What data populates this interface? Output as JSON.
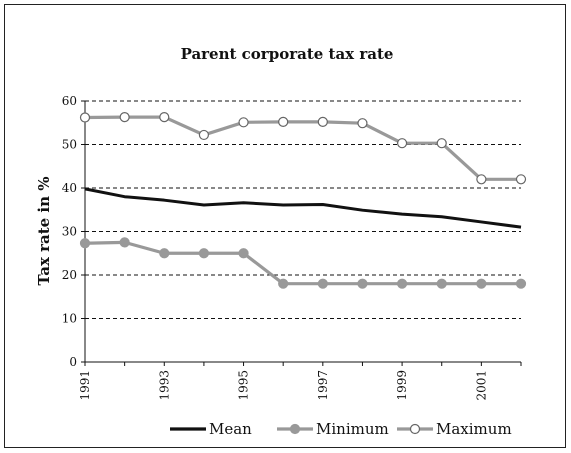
{
  "chart_data": {
    "type": "line",
    "title": "Parent corporate tax rate",
    "xlabel": "",
    "ylabel": "Tax rate in %",
    "x": [
      1991,
      1992,
      1993,
      1994,
      1995,
      1996,
      1997,
      1998,
      1999,
      2000,
      2001,
      2002
    ],
    "x_tick_labels": [
      "1991",
      "1993",
      "1995",
      "1997",
      "1999",
      "2001"
    ],
    "x_tick_values": [
      1991,
      1993,
      1995,
      1997,
      1999,
      2001
    ],
    "xlim": [
      1991,
      2002
    ],
    "ylim": [
      0,
      60
    ],
    "y_ticks": [
      0,
      10,
      20,
      30,
      40,
      50,
      60
    ],
    "grid": "horizontal dashed",
    "legend_position": "bottom",
    "series": [
      {
        "name": "Mean",
        "color": "#111111",
        "marker": "none",
        "values": [
          39.8,
          38.0,
          37.2,
          36.1,
          36.6,
          36.1,
          36.2,
          34.9,
          34.0,
          33.4,
          32.2,
          31.0
        ]
      },
      {
        "name": "Minimum",
        "color": "#999999",
        "marker": "filled-circle",
        "values": [
          27.3,
          27.5,
          25.0,
          25.0,
          25.0,
          18.0,
          18.0,
          18.0,
          18.0,
          18.0,
          18.0,
          18.0
        ]
      },
      {
        "name": "Maximum",
        "color": "#999999",
        "marker": "open-circle",
        "values": [
          56.2,
          56.3,
          56.3,
          52.2,
          55.1,
          55.2,
          55.2,
          54.9,
          50.3,
          50.3,
          42.0,
          42.0
        ]
      }
    ]
  }
}
